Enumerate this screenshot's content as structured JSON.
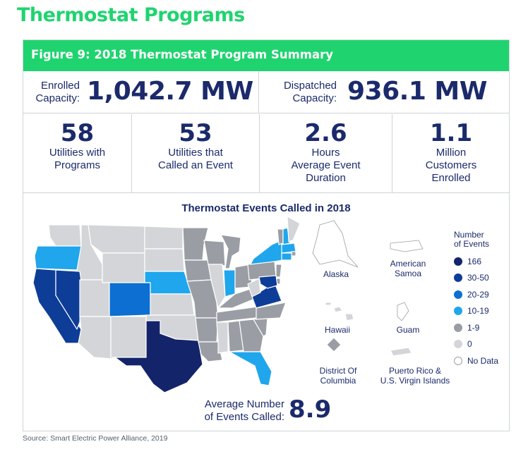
{
  "title": "Thermostat Programs",
  "figure_title": "Figure 9: 2018 Thermostat Program Summary",
  "capacity": {
    "enrolled_label_line1": "Enrolled",
    "enrolled_label_line2": "Capacity:",
    "enrolled_value": "1,042.7 MW",
    "dispatched_label_line1": "Dispatched",
    "dispatched_label_line2": "Capacity:",
    "dispatched_value": "936.1 MW"
  },
  "stats": [
    {
      "value": "58",
      "line1": "Utilities with",
      "line2": "Programs",
      "line3": ""
    },
    {
      "value": "53",
      "line1": "Utilities that",
      "line2": "Called an Event",
      "line3": ""
    },
    {
      "value": "2.6",
      "line1": "Hours",
      "line2": "Average Event",
      "line3": "Duration"
    },
    {
      "value": "1.1",
      "line1": "Million",
      "line2": "Customers",
      "line3": "Enrolled"
    }
  ],
  "chart_data": {
    "type": "choropleth",
    "title": "Thermostat Events Called in 2018",
    "legend_title_line1": "Number",
    "legend_title_line2": "of Events",
    "legend": [
      {
        "label": "166",
        "color": "#14246b"
      },
      {
        "label": "30-50",
        "color": "#0e3d98"
      },
      {
        "label": "20-29",
        "color": "#0d6fd1"
      },
      {
        "label": "10-19",
        "color": "#1fa6ec"
      },
      {
        "label": "1-9",
        "color": "#9a9ea4"
      },
      {
        "label": "0",
        "color": "#d3d5d8"
      },
      {
        "label": "No Data",
        "color": "#ffffff"
      }
    ],
    "categories_by_state": {
      "TX": "166",
      "CA": "30-50",
      "NV": "30-50",
      "VA": "30-50",
      "MD": "30-50",
      "CO": "20-29",
      "OR": "10-19",
      "NE": "10-19",
      "NY": "10-19",
      "IN": "10-19",
      "FL": "10-19",
      "MA": "10-19",
      "CT": "10-19",
      "NH": "10-19",
      "MN": "1-9",
      "WI": "1-9",
      "IA": "1-9",
      "MO": "1-9",
      "AR": "1-9",
      "LA": "1-9",
      "MI": "1-9",
      "OH": "1-9",
      "KY": "1-9",
      "TN": "1-9",
      "AL": "1-9",
      "GA": "1-9",
      "SC": "1-9",
      "NC": "1-9",
      "PA": "1-9",
      "NJ": "1-9",
      "DE": "1-9",
      "VT": "1-9",
      "RI": "1-9",
      "DC": "1-9",
      "WA": "0",
      "ID": "0",
      "MT": "0",
      "WY": "0",
      "UT": "0",
      "AZ": "0",
      "NM": "0",
      "ND": "0",
      "SD": "0",
      "KS": "0",
      "OK": "0",
      "IL": "0",
      "MS": "0",
      "WV": "0",
      "ME": "0",
      "AK": "No Data",
      "HI": "0",
      "AS": "No Data",
      "GU": "No Data",
      "PR": "0"
    },
    "territories": [
      {
        "name": "Alaska"
      },
      {
        "name": "American Samoa"
      },
      {
        "name": "Hawaii"
      },
      {
        "name": "Guam"
      },
      {
        "name": "District Of Columbia"
      },
      {
        "name": "Puerto Rico & U.S. Virgin Islands"
      }
    ]
  },
  "territory_labels": {
    "alaska": "Alaska",
    "american_samoa_1": "American",
    "american_samoa_2": "Samoa",
    "hawaii": "Hawaii",
    "guam": "Guam",
    "dc_1": "District Of",
    "dc_2": "Columbia",
    "pr_1": "Puerto Rico &",
    "pr_2": "U.S. Virgin Islands"
  },
  "average": {
    "label_line1": "Average Number",
    "label_line2": "of Events Called:",
    "value": "8.9"
  },
  "source": "Source: Smart Electric Power Alliance, 2019",
  "colors": {
    "brand_green": "#1fd46f",
    "navy": "#1b2a6b",
    "border": "#cfd3d8"
  }
}
